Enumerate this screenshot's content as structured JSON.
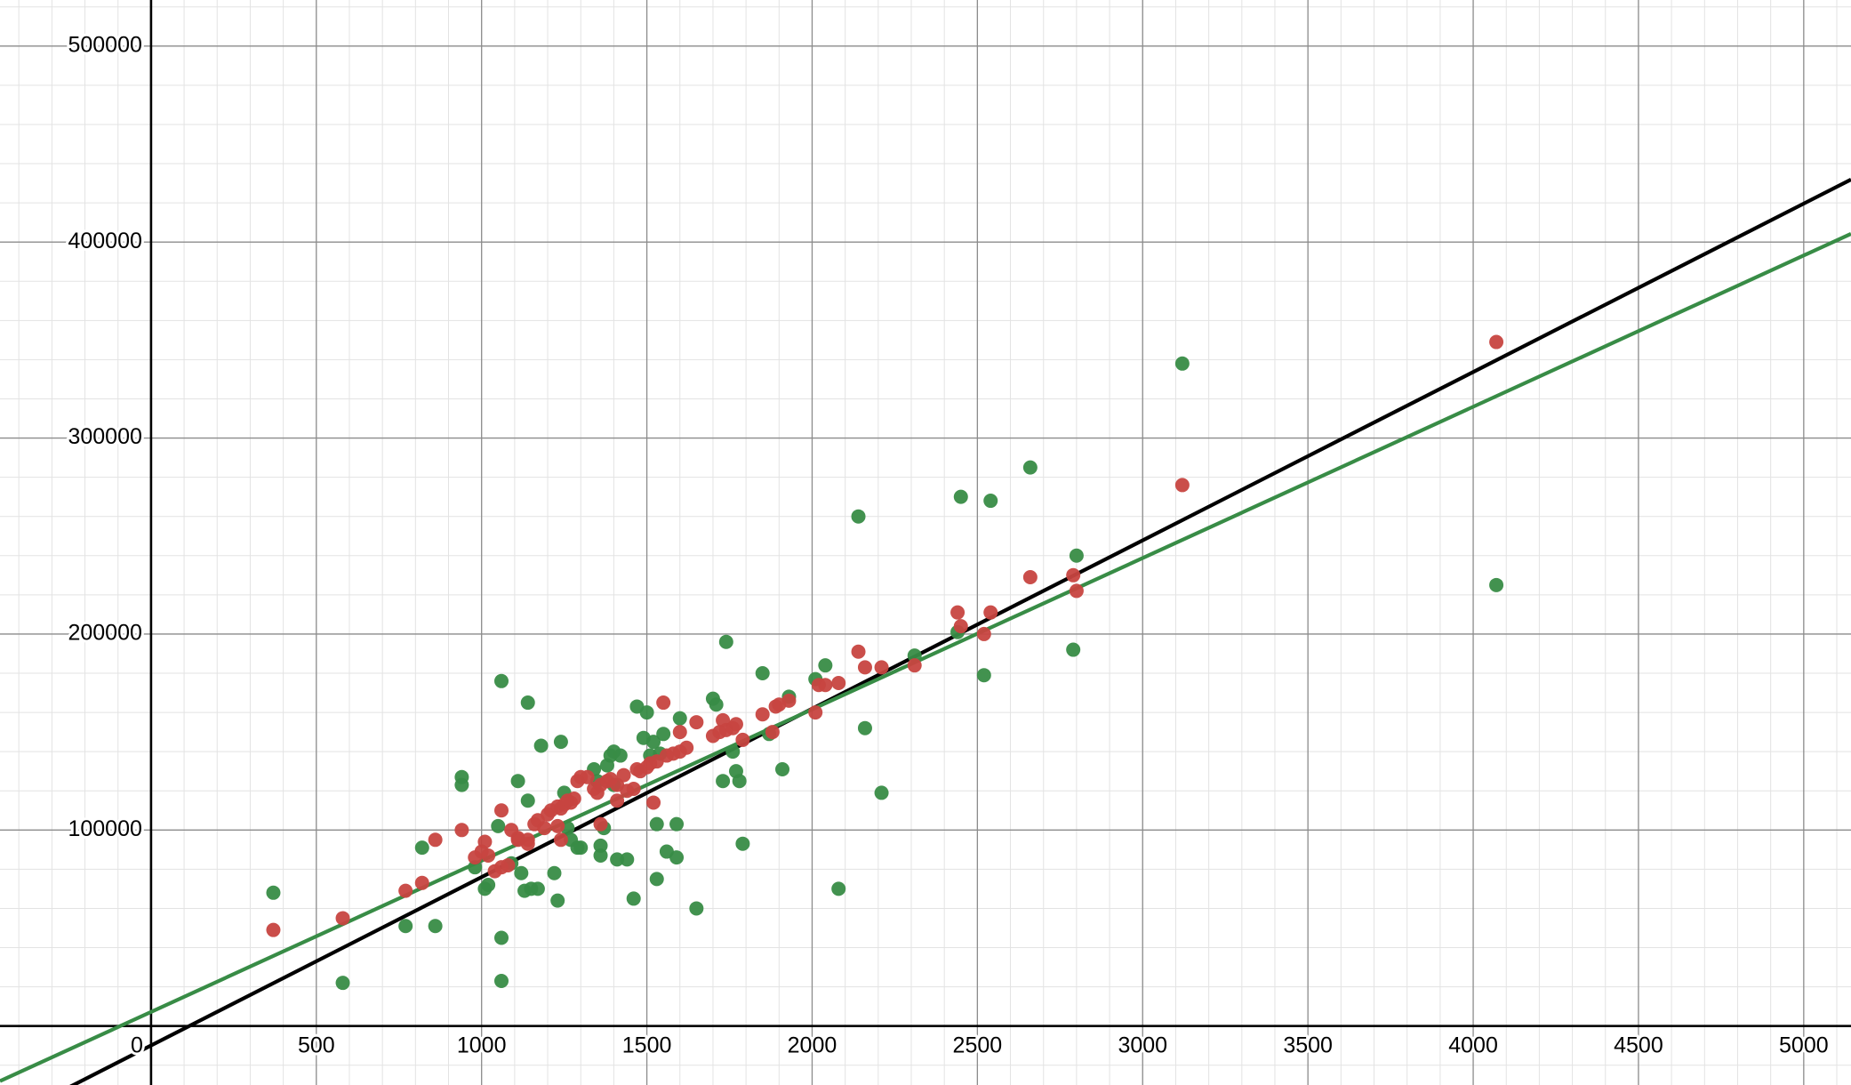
{
  "chart_data": {
    "type": "scatter",
    "xlim": [
      -457,
      5143
    ],
    "ylim": [
      -30100,
      523500
    ],
    "xticks": [
      0,
      500,
      1000,
      1500,
      2000,
      2500,
      3000,
      3500,
      4000,
      4500,
      5000
    ],
    "yticks": [
      100000,
      200000,
      300000,
      400000,
      500000
    ],
    "grid": true,
    "series": [
      {
        "type": "scatter",
        "color": "#388c46",
        "x": [
          370,
          580,
          770,
          820,
          860,
          940,
          940,
          980,
          1010,
          1020,
          1050,
          1060,
          1060,
          1060,
          1090,
          1110,
          1120,
          1130,
          1140,
          1140,
          1150,
          1170,
          1180,
          1220,
          1230,
          1240,
          1250,
          1260,
          1270,
          1290,
          1300,
          1340,
          1350,
          1360,
          1360,
          1370,
          1380,
          1390,
          1400,
          1400,
          1410,
          1420,
          1440,
          1460,
          1470,
          1490,
          1500,
          1510,
          1520,
          1530,
          1530,
          1540,
          1550,
          1560,
          1590,
          1590,
          1600,
          1650,
          1700,
          1710,
          1730,
          1740,
          1760,
          1770,
          1780,
          1790,
          1850,
          1870,
          1910,
          1930,
          2010,
          2040,
          2080,
          2140,
          2160,
          2210,
          2310,
          2440,
          2450,
          2520,
          2540,
          2660,
          2790,
          2800,
          3120,
          4070
        ],
        "values": [
          68000,
          22000,
          51000,
          91000,
          51000,
          127000,
          123000,
          81000,
          70000,
          72000,
          102000,
          176000,
          45000,
          23000,
          83000,
          125000,
          78000,
          69000,
          115000,
          165000,
          70000,
          70000,
          143000,
          78000,
          64000,
          145000,
          119000,
          101000,
          95000,
          91000,
          91000,
          131000,
          125000,
          92000,
          87000,
          101000,
          133000,
          138000,
          140000,
          123000,
          85000,
          138000,
          85000,
          65000,
          163000,
          147000,
          160000,
          138000,
          145000,
          103000,
          75000,
          139000,
          149000,
          89000,
          86000,
          103000,
          157000,
          60000,
          167000,
          164000,
          125000,
          196000,
          140000,
          130000,
          125000,
          93000,
          180000,
          149000,
          131000,
          168000,
          177000,
          184000,
          70000,
          260000,
          152000,
          119000,
          189000,
          201000,
          270000,
          179000,
          268000,
          285000,
          192000,
          240000,
          338000,
          225000
        ]
      },
      {
        "type": "scatter",
        "color": "#c74440",
        "x": [
          370,
          580,
          770,
          820,
          860,
          940,
          980,
          1010,
          1000,
          1020,
          1040,
          1060,
          1060,
          1080,
          1090,
          1110,
          1110,
          1140,
          1140,
          1160,
          1170,
          1190,
          1200,
          1210,
          1230,
          1240,
          1230,
          1240,
          1250,
          1260,
          1270,
          1280,
          1290,
          1300,
          1320,
          1340,
          1350,
          1360,
          1360,
          1380,
          1390,
          1410,
          1410,
          1430,
          1440,
          1460,
          1470,
          1480,
          1500,
          1510,
          1520,
          1530,
          1550,
          1560,
          1580,
          1600,
          1600,
          1620,
          1650,
          1700,
          1720,
          1730,
          1740,
          1760,
          1770,
          1790,
          1850,
          1880,
          1890,
          1900,
          1930,
          2010,
          2020,
          2040,
          2080,
          2140,
          2160,
          2210,
          2310,
          2440,
          2450,
          2520,
          2540,
          2660,
          2790,
          2800,
          3120,
          4070
        ],
        "values": [
          49000,
          55000,
          69000,
          73000,
          95000,
          100000,
          86000,
          94000,
          89000,
          87000,
          79000,
          110000,
          81000,
          82000,
          100000,
          96000,
          95000,
          95000,
          93000,
          103000,
          105000,
          101000,
          108000,
          110000,
          112000,
          111000,
          102000,
          95000,
          113000,
          115000,
          114000,
          116000,
          125000,
          127000,
          127000,
          121000,
          119000,
          103000,
          123000,
          125000,
          126000,
          123000,
          115000,
          128000,
          120000,
          121000,
          131000,
          130000,
          132000,
          134000,
          114000,
          135000,
          165000,
          138000,
          139000,
          150000,
          140000,
          142000,
          155000,
          148000,
          150000,
          156000,
          151000,
          152000,
          154000,
          146000,
          159000,
          150000,
          163000,
          164000,
          166000,
          160000,
          174000,
          174000,
          175000,
          191000,
          183000,
          183000,
          184000,
          211000,
          204000,
          200000,
          211000,
          229000,
          230000,
          222000,
          276000,
          349000
        ]
      },
      {
        "type": "line",
        "color": "#000000",
        "x": [
          -457,
          5143
        ],
        "values": [
          -49200,
          431900
        ]
      },
      {
        "type": "line",
        "color": "#388c46",
        "x": [
          -457,
          5143
        ],
        "values": [
          -28100,
          404200
        ]
      }
    ]
  }
}
